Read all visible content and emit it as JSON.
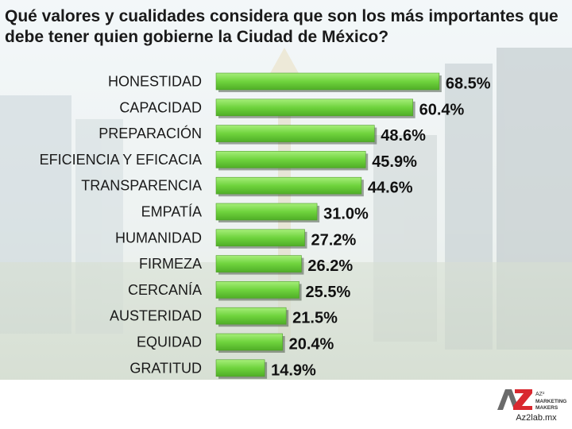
{
  "chart_data": {
    "type": "bar",
    "orientation": "horizontal",
    "title": "Qué valores y cualidades considera que son los más importantes que debe tener quien gobierne la Ciudad de México?",
    "categories": [
      "HONESTIDAD",
      "CAPACIDAD",
      "PREPARACIÓN",
      "EFICIENCIA Y EFICACIA",
      "TRANSPARENCIA",
      "EMPATÍA",
      "HUMANIDAD",
      "FIRMEZA",
      "CERCANÍA",
      "AUSTERIDAD",
      "EQUIDAD",
      "GRATITUD"
    ],
    "values": [
      68.5,
      60.4,
      48.6,
      45.9,
      44.6,
      31.0,
      27.2,
      26.2,
      25.5,
      21.5,
      20.4,
      14.9
    ],
    "value_labels": [
      "68.5%",
      "60.4%",
      "48.6%",
      "45.9%",
      "44.6%",
      "31.0%",
      "27.2%",
      "26.2%",
      "25.5%",
      "21.5%",
      "20.4%",
      "14.9%"
    ],
    "unit": "%",
    "xlim": [
      0,
      100
    ],
    "grid": false,
    "legend": "none",
    "bar_color": "#7ed957"
  },
  "brand": {
    "logo_text": "AZ",
    "logo_tagline": "MARKETING MAKERS",
    "site": "Az2lab.mx",
    "logo_accent": "#d9282f"
  }
}
